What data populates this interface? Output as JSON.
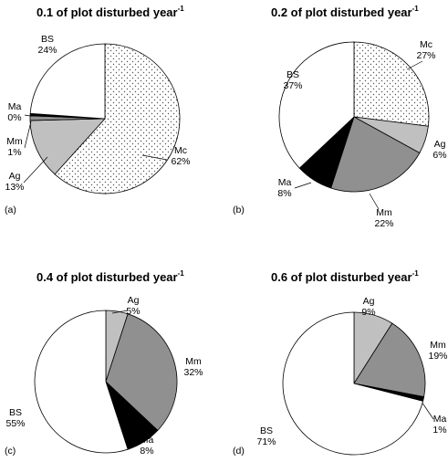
{
  "chart_data": [
    {
      "type": "pie",
      "panel": "(a)",
      "title": "0.1 of plot disturbed year",
      "title_superscript": "-1",
      "slices": [
        {
          "name": "Mc",
          "label": "62%",
          "value": 62,
          "color": "dotted"
        },
        {
          "name": "Ag",
          "label": "13%",
          "value": 13,
          "color": "#c0c0c0"
        },
        {
          "name": "Mm",
          "label": "1%",
          "value": 1,
          "color": "#909090"
        },
        {
          "name": "Ma",
          "label": "0%",
          "value": 0.5,
          "color": "#000000"
        },
        {
          "name": "BS",
          "label": "24%",
          "value": 24,
          "color": "#ffffff"
        }
      ]
    },
    {
      "type": "pie",
      "panel": "(b)",
      "title": "0.2 of plot disturbed year",
      "title_superscript": "-1",
      "slices": [
        {
          "name": "Mc",
          "label": "27%",
          "value": 27,
          "color": "dotted"
        },
        {
          "name": "Ag",
          "label": "6%",
          "value": 6,
          "color": "#c0c0c0"
        },
        {
          "name": "Mm",
          "label": "22%",
          "value": 22,
          "color": "#909090"
        },
        {
          "name": "Ma",
          "label": "8%",
          "value": 8,
          "color": "#000000"
        },
        {
          "name": "BS",
          "label": "37%",
          "value": 37,
          "color": "#ffffff"
        }
      ]
    },
    {
      "type": "pie",
      "panel": "(c)",
      "title": "0.4 of plot disturbed year",
      "title_superscript": "-1",
      "slices": [
        {
          "name": "Ag",
          "label": "5%",
          "value": 5,
          "color": "#c0c0c0"
        },
        {
          "name": "Mm",
          "label": "32%",
          "value": 32,
          "color": "#909090"
        },
        {
          "name": "Ma",
          "label": "8%",
          "value": 8,
          "color": "#000000"
        },
        {
          "name": "BS",
          "label": "55%",
          "value": 55,
          "color": "#ffffff"
        }
      ]
    },
    {
      "type": "pie",
      "panel": "(d)",
      "title": "0.6 of plot disturbed year",
      "title_superscript": "-1",
      "slices": [
        {
          "name": "Ag",
          "label": "9%",
          "value": 9,
          "color": "#c0c0c0"
        },
        {
          "name": "Mm",
          "label": "19%",
          "value": 19,
          "color": "#909090"
        },
        {
          "name": "Ma",
          "label": "1%",
          "value": 1,
          "color": "#000000"
        },
        {
          "name": "BS",
          "label": "71%",
          "value": 71,
          "color": "#ffffff"
        }
      ]
    }
  ]
}
